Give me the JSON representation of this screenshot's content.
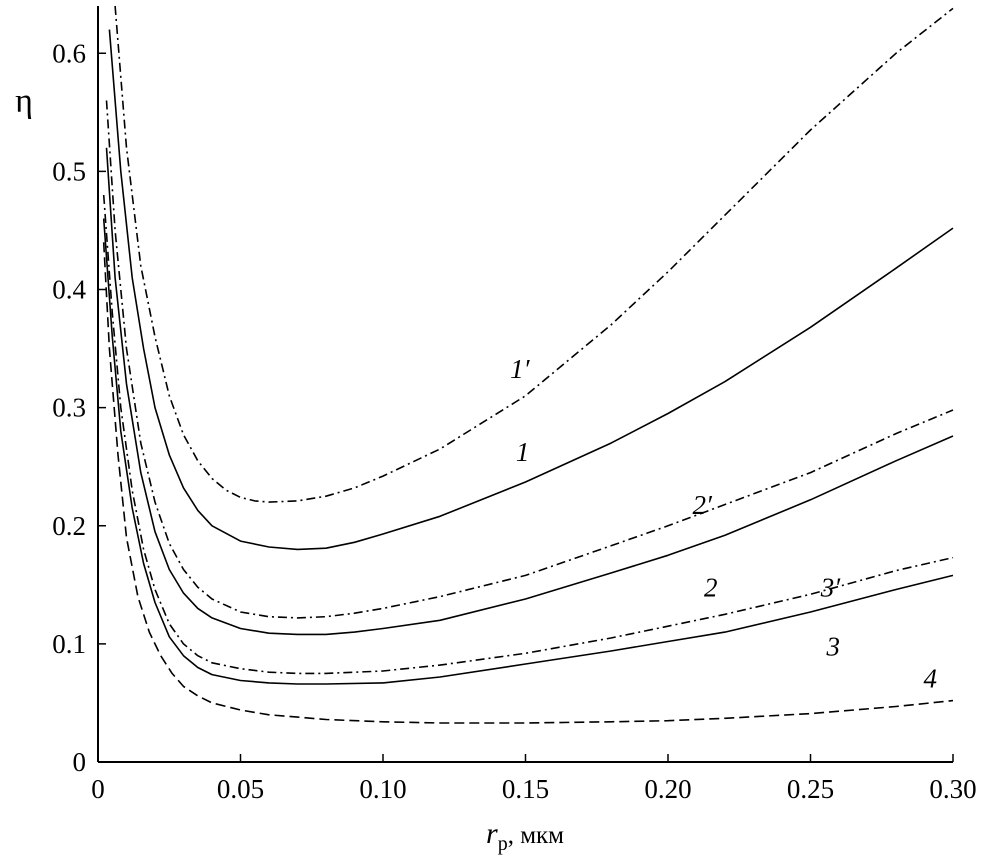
{
  "chart_data": {
    "type": "line",
    "ylabel": "η",
    "xlabel": "r",
    "xlabel_sub": "p",
    "xlabel_unit": ", мкм",
    "xlim": [
      0,
      0.3
    ],
    "ylim": [
      0,
      0.64
    ],
    "x_ticks": [
      0,
      0.05,
      0.1,
      0.15,
      0.2,
      0.25,
      0.3
    ],
    "x_tick_labels": [
      "0",
      "0.05",
      "0.10",
      "0.15",
      "0.20",
      "0.25",
      "0.30"
    ],
    "y_ticks": [
      0,
      0.1,
      0.2,
      0.3,
      0.4,
      0.5,
      0.6
    ],
    "y_tick_labels": [
      "0",
      "0.1",
      "0.2",
      "0.3",
      "0.4",
      "0.5",
      "0.6"
    ],
    "grid": false,
    "series": [
      {
        "name": "1′",
        "style": "dash-dot",
        "label_at": [
          0.148,
          0.325
        ],
        "x": [
          0.006,
          0.01,
          0.015,
          0.02,
          0.025,
          0.03,
          0.035,
          0.04,
          0.045,
          0.05,
          0.055,
          0.06,
          0.07,
          0.08,
          0.09,
          0.1,
          0.12,
          0.15,
          0.18,
          0.2,
          0.22,
          0.25,
          0.28,
          0.3
        ],
        "y": [
          0.64,
          0.52,
          0.42,
          0.36,
          0.31,
          0.277,
          0.255,
          0.24,
          0.23,
          0.224,
          0.221,
          0.22,
          0.221,
          0.225,
          0.232,
          0.242,
          0.265,
          0.31,
          0.37,
          0.415,
          0.463,
          0.535,
          0.6,
          0.638
        ]
      },
      {
        "name": "1",
        "style": "solid",
        "label_at": [
          0.149,
          0.255
        ],
        "x": [
          0.004,
          0.008,
          0.012,
          0.016,
          0.02,
          0.025,
          0.03,
          0.035,
          0.04,
          0.05,
          0.06,
          0.07,
          0.08,
          0.09,
          0.1,
          0.12,
          0.15,
          0.18,
          0.2,
          0.22,
          0.25,
          0.28,
          0.3
        ],
        "y": [
          0.62,
          0.5,
          0.41,
          0.35,
          0.3,
          0.26,
          0.232,
          0.213,
          0.2,
          0.187,
          0.182,
          0.18,
          0.181,
          0.186,
          0.193,
          0.208,
          0.237,
          0.27,
          0.295,
          0.322,
          0.368,
          0.418,
          0.452
        ]
      },
      {
        "name": "2′",
        "style": "dash-dot",
        "label_at": [
          0.212,
          0.21
        ],
        "x": [
          0.003,
          0.006,
          0.01,
          0.015,
          0.02,
          0.025,
          0.03,
          0.035,
          0.04,
          0.05,
          0.06,
          0.07,
          0.08,
          0.09,
          0.1,
          0.12,
          0.15,
          0.18,
          0.2,
          0.22,
          0.25,
          0.28,
          0.3
        ],
        "y": [
          0.56,
          0.45,
          0.35,
          0.27,
          0.22,
          0.185,
          0.163,
          0.148,
          0.138,
          0.127,
          0.123,
          0.122,
          0.123,
          0.126,
          0.13,
          0.14,
          0.158,
          0.183,
          0.2,
          0.218,
          0.245,
          0.278,
          0.298
        ]
      },
      {
        "name": "2",
        "style": "solid",
        "label_at": [
          0.215,
          0.14
        ],
        "x": [
          0.003,
          0.006,
          0.01,
          0.015,
          0.02,
          0.025,
          0.03,
          0.035,
          0.04,
          0.05,
          0.06,
          0.07,
          0.08,
          0.09,
          0.1,
          0.12,
          0.15,
          0.18,
          0.2,
          0.22,
          0.25,
          0.28,
          0.3
        ],
        "y": [
          0.52,
          0.41,
          0.32,
          0.245,
          0.195,
          0.163,
          0.143,
          0.13,
          0.122,
          0.113,
          0.109,
          0.108,
          0.108,
          0.11,
          0.113,
          0.12,
          0.138,
          0.16,
          0.175,
          0.192,
          0.222,
          0.255,
          0.276
        ]
      },
      {
        "name": "3′",
        "style": "dash-dot",
        "label_at": [
          0.257,
          0.14
        ],
        "x": [
          0.002,
          0.005,
          0.008,
          0.012,
          0.016,
          0.02,
          0.025,
          0.03,
          0.035,
          0.04,
          0.05,
          0.06,
          0.07,
          0.08,
          0.1,
          0.12,
          0.15,
          0.18,
          0.2,
          0.22,
          0.25,
          0.28,
          0.3
        ],
        "y": [
          0.48,
          0.38,
          0.3,
          0.23,
          0.18,
          0.146,
          0.117,
          0.1,
          0.09,
          0.084,
          0.079,
          0.076,
          0.075,
          0.075,
          0.077,
          0.082,
          0.092,
          0.105,
          0.115,
          0.125,
          0.142,
          0.162,
          0.173
        ]
      },
      {
        "name": "3",
        "style": "solid",
        "label_at": [
          0.258,
          0.09
        ],
        "x": [
          0.002,
          0.005,
          0.008,
          0.012,
          0.016,
          0.02,
          0.025,
          0.03,
          0.035,
          0.04,
          0.05,
          0.06,
          0.07,
          0.08,
          0.1,
          0.12,
          0.15,
          0.18,
          0.2,
          0.22,
          0.25,
          0.28,
          0.3
        ],
        "y": [
          0.46,
          0.36,
          0.28,
          0.215,
          0.168,
          0.135,
          0.106,
          0.09,
          0.08,
          0.074,
          0.069,
          0.067,
          0.066,
          0.066,
          0.067,
          0.072,
          0.083,
          0.094,
          0.102,
          0.11,
          0.127,
          0.146,
          0.158
        ]
      },
      {
        "name": "4",
        "style": "dashed",
        "label_at": [
          0.292,
          0.063
        ],
        "x": [
          0.002,
          0.004,
          0.007,
          0.01,
          0.014,
          0.018,
          0.022,
          0.026,
          0.03,
          0.035,
          0.04,
          0.05,
          0.06,
          0.07,
          0.08,
          0.1,
          0.12,
          0.15,
          0.18,
          0.2,
          0.22,
          0.25,
          0.28,
          0.3
        ],
        "y": [
          0.44,
          0.35,
          0.26,
          0.19,
          0.14,
          0.11,
          0.09,
          0.075,
          0.064,
          0.056,
          0.05,
          0.044,
          0.04,
          0.038,
          0.036,
          0.034,
          0.033,
          0.033,
          0.034,
          0.035,
          0.037,
          0.041,
          0.047,
          0.052
        ]
      }
    ]
  }
}
